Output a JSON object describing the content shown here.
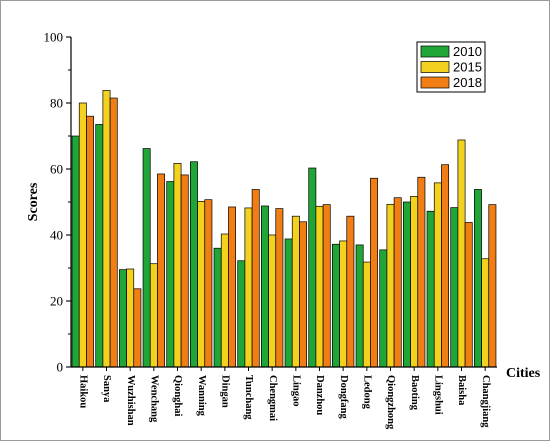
{
  "chart_data": {
    "type": "bar",
    "xlabel": "Cities",
    "ylabel": "Scores",
    "ylim": [
      0,
      100
    ],
    "yticks": [
      0,
      20,
      40,
      60,
      80,
      100
    ],
    "grid": false,
    "legend_position": "top-right",
    "categories": [
      "Haikou",
      "Sanya",
      "Wuzhishan",
      "Wenchang",
      "Qionghai",
      "Wanning",
      "Dingan",
      "Tunchang",
      "Chengmai",
      "Lingao",
      "Danzhou",
      "Dongfang",
      "Ledong",
      "Qiongzhong",
      "Baoting",
      "Lingshui",
      "Baisha",
      "Changjiang"
    ],
    "series": [
      {
        "name": "2010",
        "color": "#1fa637",
        "values": [
          70,
          73.5,
          29.5,
          66.2,
          56.2,
          62.2,
          36,
          32.2,
          48.8,
          38.8,
          60.3,
          37.2,
          37,
          35.5,
          50,
          47.2,
          48.3,
          53.8
        ]
      },
      {
        "name": "2015",
        "color": "#f2d11f",
        "values": [
          80,
          83.8,
          29.7,
          31.3,
          61.7,
          50.2,
          40.3,
          48.2,
          40,
          45.7,
          48.7,
          38.2,
          31.8,
          49.3,
          51.7,
          55.8,
          68.8,
          32.8
        ]
      },
      {
        "name": "2018",
        "color": "#f07e14",
        "values": [
          76,
          81.5,
          23.7,
          58.5,
          58.2,
          50.7,
          48.5,
          53.8,
          48,
          44,
          49.2,
          45.7,
          57.2,
          51.3,
          57.5,
          61.3,
          43.8,
          49.2
        ]
      }
    ]
  }
}
